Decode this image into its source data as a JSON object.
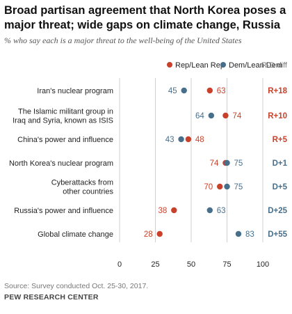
{
  "header": {
    "title": "Broad partisan agreement that North Korea poses a major threat; wide gaps on climate change, Russia",
    "subtitle": "% who say each is a major threat to the well-being of the United States"
  },
  "footer": {
    "source": "Source: Survey conducted Oct. 25-30, 2017.",
    "org": "PEW RESEARCH CENTER"
  },
  "colors": {
    "rep": "#c9412b",
    "dem": "#476f8c",
    "gridline": "#d0d0d0",
    "diff_rep": "#c9412b",
    "diff_dem": "#476f8c"
  },
  "chart_data": {
    "type": "scatter",
    "title": "Broad partisan agreement that North Korea poses a major threat; wide gaps on climate change, Russia",
    "subtitle": "% who say each is a major threat to the well-being of the United States",
    "diff_header": "R-D diff",
    "xlim": [
      0,
      100
    ],
    "ticks": [
      0,
      25,
      50,
      75,
      100
    ],
    "grid": true,
    "legend": "top",
    "series": [
      {
        "name": "Rep/Lean Rep",
        "key": "rep"
      },
      {
        "name": "Dem/Lean Dem",
        "key": "dem"
      }
    ],
    "categories": [
      "Iran's nuclear program",
      "The Islamic militant group in Iraq and Syria, known as ISIS",
      "China's power and influence",
      "North Korea's nuclear program",
      "Cyberattacks from other countries",
      "Russia's power and influence",
      "Global climate change"
    ],
    "rows": [
      {
        "label_lines": [
          "Iran's nuclear program"
        ],
        "rep": 63,
        "dem": 45,
        "diff": "R+18"
      },
      {
        "label_lines": [
          "The Islamic militant group in",
          "Iraq and Syria, known as ISIS"
        ],
        "rep": 74,
        "dem": 64,
        "diff": "R+10"
      },
      {
        "label_lines": [
          "China's power and influence"
        ],
        "rep": 48,
        "dem": 43,
        "diff": "R+5"
      },
      {
        "label_lines": [
          "North Korea's nuclear program"
        ],
        "rep": 74,
        "dem": 75,
        "diff": "D+1"
      },
      {
        "label_lines": [
          "Cyberattacks from",
          "other countries"
        ],
        "rep": 70,
        "dem": 75,
        "diff": "D+5"
      },
      {
        "label_lines": [
          "Russia's power and influence"
        ],
        "rep": 38,
        "dem": 63,
        "diff": "D+25"
      },
      {
        "label_lines": [
          "Global climate change"
        ],
        "rep": 28,
        "dem": 83,
        "diff": "D+55"
      }
    ]
  }
}
